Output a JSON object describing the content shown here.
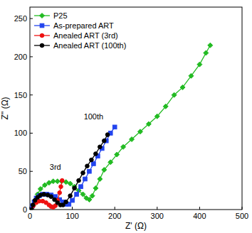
{
  "chart_data": {
    "type": "line",
    "x_label": "Z' (Ω)",
    "y_label": "Z'' (Ω)",
    "xlim": [
      0,
      500
    ],
    "xticks": [
      0,
      100,
      200,
      300,
      400,
      500
    ],
    "ylim": [
      0,
      265
    ],
    "yticks": [
      0,
      50,
      100,
      150,
      200,
      250
    ],
    "legend": "upper left",
    "annotations": [
      "100th",
      "3rd"
    ],
    "series": [
      {
        "name": "P25",
        "color": "#22bb22",
        "marker": "diamond",
        "x": [
          5,
          8,
          12,
          18,
          25,
          35,
          45,
          55,
          65,
          75,
          85,
          95,
          105,
          115,
          125,
          133,
          140,
          147,
          155,
          165,
          175,
          190,
          205,
          220,
          240,
          260,
          280,
          300,
          320,
          340,
          360,
          380,
          400,
          415,
          425
        ],
        "values": [
          0,
          5,
          12,
          20,
          27,
          32,
          35,
          37,
          37,
          37,
          36,
          34,
          30,
          25,
          20,
          15,
          13,
          18,
          28,
          40,
          52,
          62,
          72,
          82,
          92,
          102,
          112,
          122,
          135,
          150,
          160,
          175,
          190,
          205,
          215
        ]
      },
      {
        "name": "As-prepared ART",
        "color": "#2244ee",
        "marker": "square",
        "x": [
          4,
          6,
          10,
          15,
          22,
          30,
          40,
          50,
          60,
          70,
          78,
          85,
          92,
          100,
          110,
          120,
          130,
          140,
          150,
          160,
          170,
          180,
          190,
          200
        ],
        "values": [
          0,
          5,
          10,
          15,
          18,
          20,
          20,
          19,
          17,
          13,
          10,
          7,
          7,
          12,
          20,
          30,
          40,
          50,
          60,
          70,
          80,
          90,
          100,
          108
        ]
      },
      {
        "name": "Anealed ART (3rd)",
        "color": "#ee1111",
        "marker": "circle",
        "x": [
          4,
          8,
          15,
          22,
          30,
          38,
          45,
          50,
          55,
          60,
          65,
          70,
          73,
          76
        ],
        "values": [
          0,
          5,
          9,
          11,
          11,
          9,
          6,
          4,
          3,
          5,
          12,
          22,
          30,
          38
        ]
      },
      {
        "name": "Anealed ART (100th)",
        "color": "#000000",
        "marker": "circle",
        "x": [
          4,
          7,
          12,
          18,
          25,
          33,
          42,
          50,
          58,
          65,
          72,
          78,
          85,
          95,
          105,
          115,
          125,
          135,
          145,
          155,
          165,
          175,
          183
        ],
        "values": [
          0,
          6,
          12,
          16,
          19,
          20,
          19,
          17,
          13,
          9,
          6,
          6,
          10,
          18,
          28,
          38,
          48,
          57,
          65,
          73,
          82,
          90,
          98
        ]
      }
    ]
  }
}
